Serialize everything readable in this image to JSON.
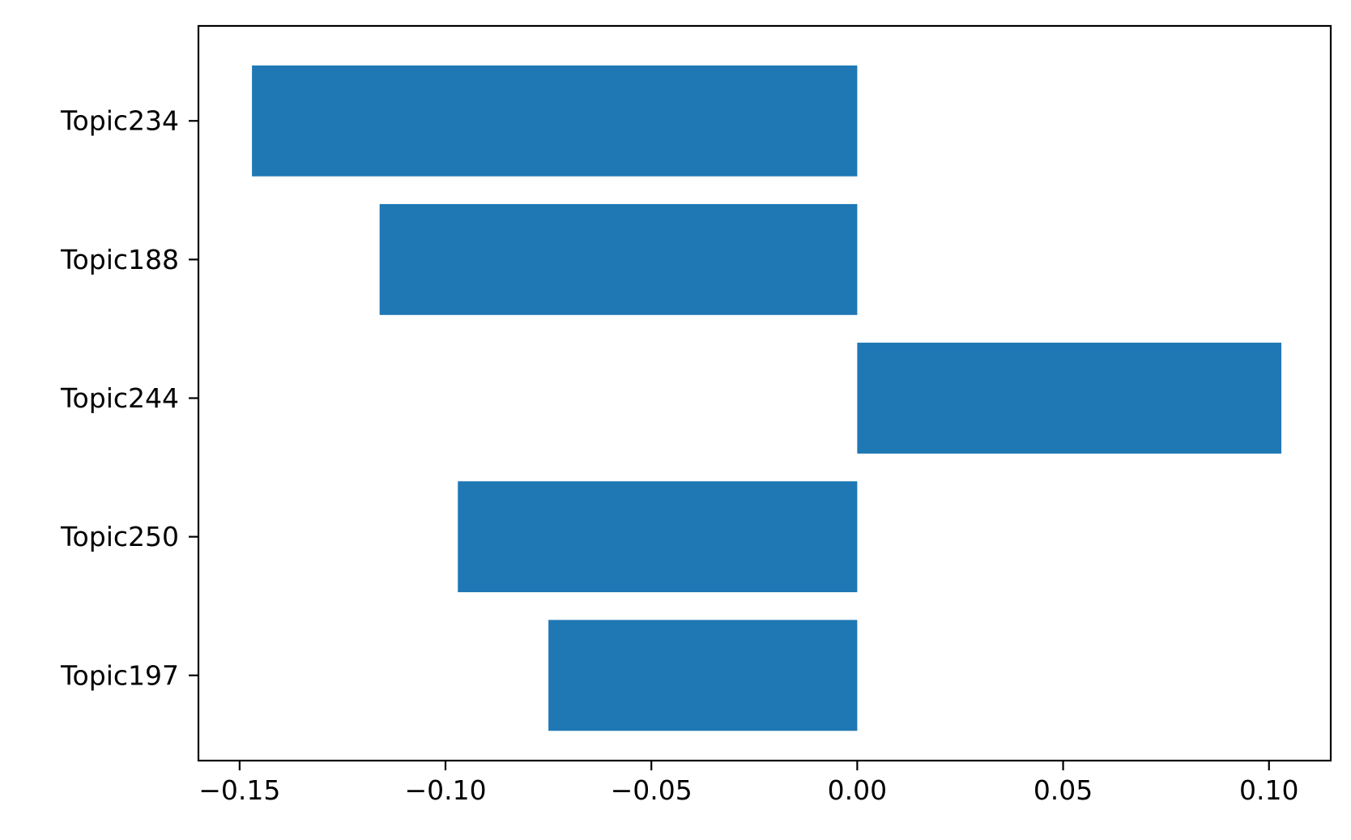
{
  "chart_data": {
    "type": "bar",
    "orientation": "horizontal",
    "categories": [
      "Topic234",
      "Topic188",
      "Topic244",
      "Topic250",
      "Topic197"
    ],
    "values": [
      -0.147,
      -0.116,
      0.103,
      -0.097,
      -0.075
    ],
    "xlim": [
      -0.16,
      0.115
    ],
    "xticks": [
      -0.15,
      -0.1,
      -0.05,
      0.0,
      0.05,
      0.1
    ],
    "xtick_labels": [
      "−0.15",
      "−0.10",
      "−0.05",
      "0.00",
      "0.05",
      "0.10"
    ],
    "title": "",
    "xlabel": "",
    "ylabel": "",
    "grid": false,
    "bar_color": "#1f77b4"
  }
}
